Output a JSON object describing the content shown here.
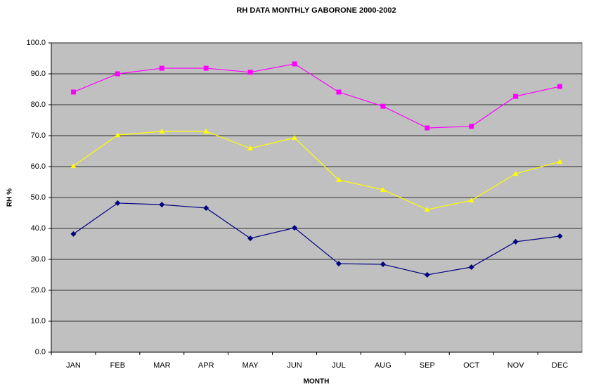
{
  "chart_data": {
    "type": "line",
    "title": "RH DATA MONTHLY GABORONE 2000-2002",
    "x_label": "MONTH",
    "y_label": "RH %",
    "categories": [
      "JAN",
      "FEB",
      "MAR",
      "APR",
      "MAY",
      "JUN",
      "JUL",
      "AUG",
      "SEP",
      "OCT",
      "NOV",
      "DEC"
    ],
    "series": [
      {
        "color": "#ff00ff",
        "marker": "square",
        "values": [
          84.1,
          90.0,
          91.8,
          91.8,
          90.5,
          93.2,
          84.1,
          79.5,
          72.5,
          73.0,
          82.7,
          85.9
        ]
      },
      {
        "color": "#ffff00",
        "marker": "triangle",
        "values": [
          60.2,
          70.2,
          71.4,
          71.4,
          65.9,
          69.3,
          55.7,
          52.5,
          46.1,
          49.1,
          57.7,
          61.6
        ]
      },
      {
        "color": "#000080",
        "marker": "diamond",
        "values": [
          38.2,
          48.2,
          47.7,
          46.6,
          36.8,
          40.2,
          28.6,
          28.4,
          25.0,
          27.5,
          35.7,
          37.5
        ]
      }
    ],
    "ylim": [
      0,
      100
    ],
    "yticks": [
      {
        "value": 0,
        "label": "0.0"
      },
      {
        "value": 10,
        "label": "10.0"
      },
      {
        "value": 20,
        "label": "20.0"
      },
      {
        "value": 30,
        "label": "30.0"
      },
      {
        "value": 40,
        "label": "40.0"
      },
      {
        "value": 50,
        "label": "50.0"
      },
      {
        "value": 60,
        "label": "60.0"
      },
      {
        "value": 70,
        "label": "70.0"
      },
      {
        "value": 80,
        "label": "80.0"
      },
      {
        "value": 90,
        "label": "90.0"
      },
      {
        "value": 100,
        "label": "100.0"
      }
    ],
    "grid": true,
    "plot_background": "#c0c0c0"
  }
}
